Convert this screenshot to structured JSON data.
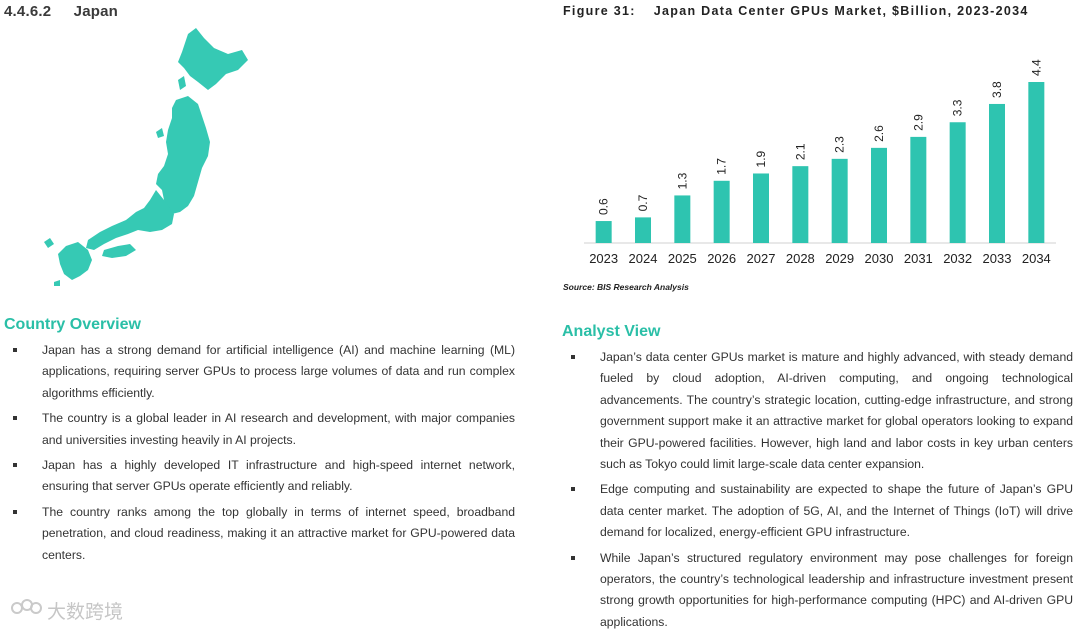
{
  "section": {
    "number": "4.4.6.2",
    "title": "Japan"
  },
  "figure": {
    "label": "Figure 31:",
    "title": "Japan Data Center GPUs Market, $Billion, 2023-2034",
    "source": "Source: BIS Research Analysis"
  },
  "chart_data": {
    "type": "bar",
    "categories": [
      "2023",
      "2024",
      "2025",
      "2026",
      "2027",
      "2028",
      "2029",
      "2030",
      "2031",
      "2032",
      "2033",
      "2034"
    ],
    "values": [
      0.6,
      0.7,
      1.3,
      1.7,
      1.9,
      2.1,
      2.3,
      2.6,
      2.9,
      3.3,
      3.8,
      4.4
    ],
    "labels": [
      "0.6",
      "0.7",
      "1.3",
      "1.7",
      "1.9",
      "2.1",
      "2.3",
      "2.6",
      "2.9",
      "3.3",
      "3.8",
      "4.4"
    ],
    "ylim": [
      0,
      4.4
    ],
    "grid": false,
    "bar_color": "#2ec4b0"
  },
  "country_overview": {
    "heading": "Country Overview",
    "bullets": [
      "Japan has a strong demand for artificial intelligence (AI) and machine learning (ML) applications, requiring server GPUs to process large volumes of data and run complex algorithms efficiently.",
      "The country is a global leader in AI research and development, with major companies and universities investing heavily in AI projects.",
      "Japan has a highly developed IT infrastructure and high-speed internet network, ensuring that server GPUs operate efficiently and reliably.",
      "The country ranks among the top globally in terms of internet speed, broadband penetration, and cloud readiness, making it an attractive market for GPU-powered data centers."
    ]
  },
  "analyst_view": {
    "heading": "Analyst View",
    "bullets": [
      "Japan’s data center GPUs market is mature and highly advanced, with steady demand fueled by cloud adoption, AI-driven computing, and ongoing technological advancements. The country’s strategic location, cutting-edge infrastructure, and strong government support make it an attractive market for global operators looking to expand their GPU-powered facilities. However, high land and labor costs in key urban centers such as Tokyo could limit large-scale data center expansion.",
      "Edge computing and sustainability are expected to shape the future of Japan’s GPU data center market. The adoption of 5G, AI, and the Internet of Things (IoT) will drive demand for localized, energy-efficient GPU infrastructure.",
      "While Japan’s structured regulatory environment may pose challenges for foreign operators, the country’s technological leadership and infrastructure investment present strong growth opportunities for high-performance computing (HPC) and AI-driven GPU applications."
    ]
  },
  "map": {
    "icon": "japan-map-icon",
    "color": "#36c9b4"
  },
  "watermark": {
    "text": "大数跨境",
    "icon": "brand-logo-icon"
  }
}
